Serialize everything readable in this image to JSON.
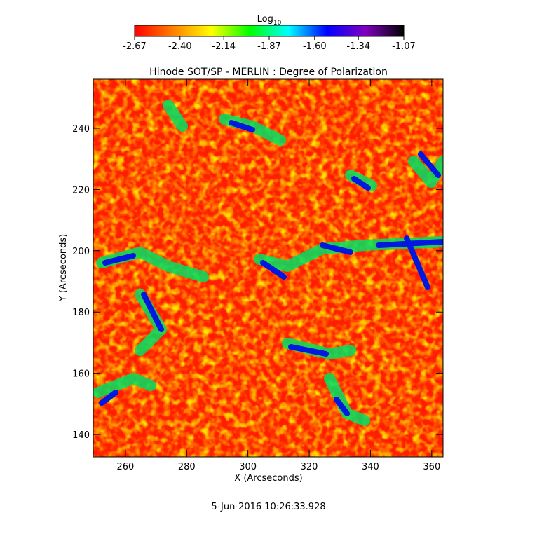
{
  "chart_data": {
    "type": "heatmap",
    "title": "Hinode SOT/SP - MERLIN : Degree of Polarization",
    "xlabel": "X (Arcseconds)",
    "ylabel": "Y (Arcseconds)",
    "xlim": [
      249.5,
      363.7
    ],
    "ylim": [
      132.7,
      256
    ],
    "xticks": [
      260,
      280,
      300,
      320,
      340,
      360
    ],
    "yticks": [
      140,
      160,
      180,
      200,
      220,
      240
    ],
    "colorbar": {
      "label": "Log",
      "label_sub": "10",
      "lim": [
        -2.67,
        -1.07
      ],
      "ticks": [
        -2.67,
        -2.4,
        -2.14,
        -1.87,
        -1.6,
        -1.34,
        -1.07
      ],
      "colors": [
        "#ff0000",
        "#ff8000",
        "#ffff00",
        "#00ff00",
        "#00ffff",
        "#0000ff",
        "#8000c0",
        "#000000"
      ]
    },
    "timestamp": "5-Jun-2016 10:26:33.928"
  }
}
